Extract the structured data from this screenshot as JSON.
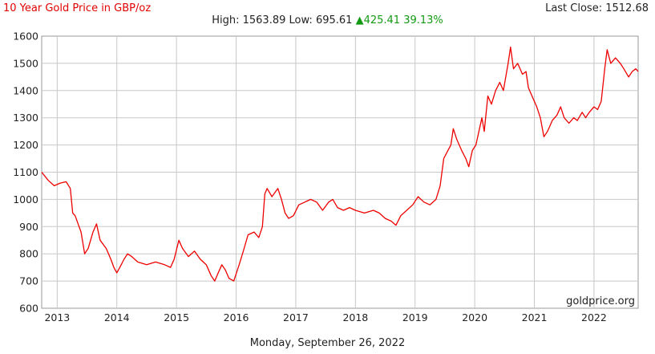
{
  "header": {
    "title": "10 Year Gold Price in GBP/oz",
    "last_close_label": "Last Close:",
    "last_close_value": "1512.68",
    "high_label": "High:",
    "high_value": "1563.89",
    "low_label": "Low:",
    "low_value": "695.61",
    "change_arrow": "▲",
    "change_value": "425.41",
    "change_percent": "39.13%"
  },
  "footer": {
    "date": "Monday, September 26, 2022",
    "source": "goldprice.org"
  },
  "colors": {
    "line": "#ee0000",
    "gain": "#129a12",
    "grid": "#c8c8c8"
  },
  "chart_data": {
    "type": "line",
    "title": "10 Year Gold Price in GBP/oz",
    "xlabel": "",
    "ylabel": "",
    "xlim": [
      2012.74,
      2022.74
    ],
    "ylim": [
      600,
      1600
    ],
    "grid": true,
    "y_ticks": [
      "600",
      "700",
      "800",
      "900",
      "1000",
      "1100",
      "1200",
      "1300",
      "1400",
      "1500",
      "1600"
    ],
    "x_ticks": [
      "2013",
      "2014",
      "2015",
      "2016",
      "2017",
      "2018",
      "2019",
      "2020",
      "2021",
      "2022"
    ],
    "series": [
      {
        "values": [
          [
            2012.74,
            1100
          ],
          [
            2012.85,
            1070
          ],
          [
            2012.95,
            1050
          ],
          [
            2013.05,
            1060
          ],
          [
            2013.15,
            1065
          ],
          [
            2013.22,
            1040
          ],
          [
            2013.26,
            950
          ],
          [
            2013.3,
            940
          ],
          [
            2013.4,
            880
          ],
          [
            2013.46,
            800
          ],
          [
            2013.52,
            820
          ],
          [
            2013.6,
            880
          ],
          [
            2013.66,
            910
          ],
          [
            2013.72,
            850
          ],
          [
            2013.82,
            820
          ],
          [
            2013.9,
            780
          ],
          [
            2013.95,
            750
          ],
          [
            2014.0,
            730
          ],
          [
            2014.05,
            750
          ],
          [
            2014.12,
            780
          ],
          [
            2014.18,
            800
          ],
          [
            2014.25,
            790
          ],
          [
            2014.35,
            770
          ],
          [
            2014.5,
            760
          ],
          [
            2014.65,
            770
          ],
          [
            2014.8,
            760
          ],
          [
            2014.9,
            750
          ],
          [
            2014.96,
            780
          ],
          [
            2015.04,
            850
          ],
          [
            2015.1,
            820
          ],
          [
            2015.2,
            790
          ],
          [
            2015.3,
            810
          ],
          [
            2015.4,
            780
          ],
          [
            2015.5,
            760
          ],
          [
            2015.58,
            720
          ],
          [
            2015.64,
            700
          ],
          [
            2015.7,
            730
          ],
          [
            2015.76,
            760
          ],
          [
            2015.82,
            740
          ],
          [
            2015.88,
            710
          ],
          [
            2015.96,
            700
          ],
          [
            2016.05,
            760
          ],
          [
            2016.12,
            810
          ],
          [
            2016.2,
            870
          ],
          [
            2016.3,
            880
          ],
          [
            2016.38,
            860
          ],
          [
            2016.44,
            900
          ],
          [
            2016.48,
            1020
          ],
          [
            2016.52,
            1040
          ],
          [
            2016.6,
            1010
          ],
          [
            2016.7,
            1040
          ],
          [
            2016.76,
            1000
          ],
          [
            2016.82,
            950
          ],
          [
            2016.88,
            930
          ],
          [
            2016.96,
            940
          ],
          [
            2017.05,
            980
          ],
          [
            2017.15,
            990
          ],
          [
            2017.25,
            1000
          ],
          [
            2017.35,
            990
          ],
          [
            2017.45,
            960
          ],
          [
            2017.55,
            990
          ],
          [
            2017.62,
            1000
          ],
          [
            2017.7,
            970
          ],
          [
            2017.8,
            960
          ],
          [
            2017.9,
            970
          ],
          [
            2018.0,
            960
          ],
          [
            2018.15,
            950
          ],
          [
            2018.3,
            960
          ],
          [
            2018.4,
            950
          ],
          [
            2018.5,
            930
          ],
          [
            2018.6,
            920
          ],
          [
            2018.68,
            905
          ],
          [
            2018.76,
            940
          ],
          [
            2018.86,
            960
          ],
          [
            2018.96,
            980
          ],
          [
            2019.05,
            1010
          ],
          [
            2019.15,
            990
          ],
          [
            2019.25,
            980
          ],
          [
            2019.35,
            1000
          ],
          [
            2019.42,
            1050
          ],
          [
            2019.48,
            1150
          ],
          [
            2019.55,
            1180
          ],
          [
            2019.6,
            1200
          ],
          [
            2019.64,
            1260
          ],
          [
            2019.7,
            1220
          ],
          [
            2019.78,
            1180
          ],
          [
            2019.85,
            1150
          ],
          [
            2019.9,
            1120
          ],
          [
            2019.96,
            1180
          ],
          [
            2020.02,
            1200
          ],
          [
            2020.08,
            1260
          ],
          [
            2020.12,
            1300
          ],
          [
            2020.16,
            1250
          ],
          [
            2020.22,
            1380
          ],
          [
            2020.28,
            1350
          ],
          [
            2020.35,
            1400
          ],
          [
            2020.42,
            1430
          ],
          [
            2020.48,
            1400
          ],
          [
            2020.56,
            1500
          ],
          [
            2020.6,
            1560
          ],
          [
            2020.65,
            1480
          ],
          [
            2020.72,
            1500
          ],
          [
            2020.8,
            1460
          ],
          [
            2020.86,
            1470
          ],
          [
            2020.9,
            1410
          ],
          [
            2020.96,
            1380
          ],
          [
            2021.04,
            1340
          ],
          [
            2021.1,
            1300
          ],
          [
            2021.16,
            1230
          ],
          [
            2021.22,
            1250
          ],
          [
            2021.3,
            1290
          ],
          [
            2021.38,
            1310
          ],
          [
            2021.44,
            1340
          ],
          [
            2021.5,
            1300
          ],
          [
            2021.58,
            1280
          ],
          [
            2021.66,
            1300
          ],
          [
            2021.72,
            1290
          ],
          [
            2021.8,
            1320
          ],
          [
            2021.86,
            1300
          ],
          [
            2021.92,
            1320
          ],
          [
            2022.0,
            1340
          ],
          [
            2022.06,
            1330
          ],
          [
            2022.12,
            1360
          ],
          [
            2022.18,
            1480
          ],
          [
            2022.22,
            1550
          ],
          [
            2022.28,
            1500
          ],
          [
            2022.36,
            1520
          ],
          [
            2022.44,
            1500
          ],
          [
            2022.5,
            1480
          ],
          [
            2022.58,
            1450
          ],
          [
            2022.64,
            1470
          ],
          [
            2022.7,
            1480
          ],
          [
            2022.74,
            1470
          ]
        ]
      }
    ]
  }
}
